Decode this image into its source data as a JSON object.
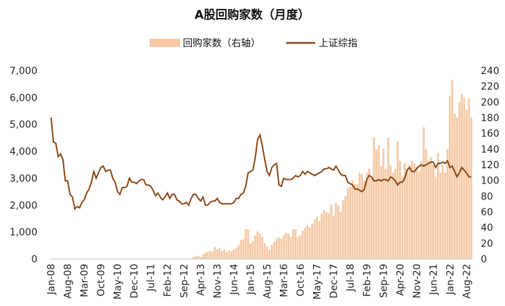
{
  "chart_data": {
    "type": "bar+line",
    "title": "A股回购家数（月度）",
    "legend": {
      "position": "top-center",
      "bar_label": "回购家数（右轴）",
      "line_label": "上证综指"
    },
    "colors": {
      "bar": "#f6c9a4",
      "line": "#8b4513"
    },
    "y_left": {
      "min": 0,
      "max": 7000,
      "ticks": [
        "0",
        "1,000",
        "2,000",
        "3,000",
        "4,000",
        "5,000",
        "6,000",
        "7,000"
      ]
    },
    "y_right": {
      "min": 0,
      "max": 240,
      "ticks": [
        "0",
        "20",
        "40",
        "60",
        "80",
        "100",
        "120",
        "140",
        "160",
        "180",
        "200",
        "220",
        "240"
      ]
    },
    "x_start": "2008-01",
    "x_tick_labels": [
      "Jan-08",
      "Aug-08",
      "Mar-09",
      "Oct-09",
      "May-10",
      "Dec-10",
      "Jul-11",
      "Feb-12",
      "Sep-12",
      "Apr-13",
      "Nov-13",
      "Jun-14",
      "Jan-15",
      "Aug-15",
      "Mar-16",
      "Oct-16",
      "May-17",
      "Dec-17",
      "Jul-18",
      "Feb-19",
      "Sep-19",
      "Apr-20",
      "Nov-20",
      "Jun-21",
      "Jan-22",
      "Aug-22"
    ],
    "line_anchors_monthly": [
      [
        0,
        5260
      ],
      [
        1,
        4350
      ],
      [
        2,
        4300
      ],
      [
        3,
        3800
      ],
      [
        4,
        3900
      ],
      [
        5,
        3700
      ],
      [
        6,
        2900
      ],
      [
        7,
        2900
      ],
      [
        8,
        2400
      ],
      [
        9,
        2300
      ],
      [
        10,
        1860
      ],
      [
        11,
        1950
      ],
      [
        12,
        1900
      ],
      [
        13,
        2100
      ],
      [
        14,
        2200
      ],
      [
        15,
        2450
      ],
      [
        16,
        2600
      ],
      [
        17,
        2850
      ],
      [
        18,
        3250
      ],
      [
        19,
        3000
      ],
      [
        20,
        3200
      ],
      [
        21,
        3400
      ],
      [
        22,
        3450
      ],
      [
        23,
        3250
      ],
      [
        24,
        3300
      ],
      [
        25,
        3300
      ],
      [
        26,
        3000
      ],
      [
        27,
        2850
      ],
      [
        28,
        2500
      ],
      [
        29,
        2400
      ],
      [
        30,
        2650
      ],
      [
        31,
        2650
      ],
      [
        32,
        2700
      ],
      [
        33,
        3000
      ],
      [
        34,
        2850
      ],
      [
        35,
        2850
      ],
      [
        36,
        2800
      ],
      [
        37,
        2900
      ],
      [
        38,
        2950
      ],
      [
        39,
        2950
      ],
      [
        40,
        2750
      ],
      [
        41,
        2750
      ],
      [
        42,
        2700
      ],
      [
        43,
        2550
      ],
      [
        44,
        2350
      ],
      [
        45,
        2450
      ],
      [
        46,
        2300
      ],
      [
        47,
        2200
      ],
      [
        48,
        2300
      ],
      [
        49,
        2450
      ],
      [
        50,
        2250
      ],
      [
        51,
        2400
      ],
      [
        52,
        2400
      ],
      [
        53,
        2200
      ],
      [
        54,
        2150
      ],
      [
        55,
        2050
      ],
      [
        56,
        2050
      ],
      [
        57,
        2100
      ],
      [
        58,
        2000
      ],
      [
        59,
        2250
      ],
      [
        60,
        2400
      ],
      [
        61,
        2400
      ],
      [
        62,
        2250
      ],
      [
        63,
        2150
      ],
      [
        64,
        2300
      ],
      [
        65,
        2000
      ],
      [
        66,
        2000
      ],
      [
        67,
        2100
      ],
      [
        68,
        2150
      ],
      [
        69,
        2150
      ],
      [
        70,
        2250
      ],
      [
        71,
        2100
      ],
      [
        72,
        2050
      ],
      [
        73,
        2050
      ],
      [
        74,
        2050
      ],
      [
        75,
        2050
      ],
      [
        76,
        2050
      ],
      [
        77,
        2100
      ],
      [
        78,
        2250
      ],
      [
        79,
        2250
      ],
      [
        80,
        2400
      ],
      [
        81,
        2450
      ],
      [
        82,
        2700
      ],
      [
        83,
        3200
      ],
      [
        84,
        3250
      ],
      [
        85,
        3300
      ],
      [
        86,
        3750
      ],
      [
        87,
        4450
      ],
      [
        88,
        4600
      ],
      [
        89,
        4200
      ],
      [
        90,
        3700
      ],
      [
        91,
        3250
      ],
      [
        92,
        3100
      ],
      [
        93,
        3400
      ],
      [
        94,
        3500
      ],
      [
        95,
        3550
      ],
      [
        96,
        2750
      ],
      [
        97,
        2700
      ],
      [
        98,
        3000
      ],
      [
        99,
        2950
      ],
      [
        100,
        2950
      ],
      [
        101,
        2950
      ],
      [
        102,
        3000
      ],
      [
        103,
        3100
      ],
      [
        104,
        3050
      ],
      [
        105,
        3100
      ],
      [
        106,
        3250
      ],
      [
        107,
        3150
      ],
      [
        108,
        3250
      ],
      [
        109,
        3200
      ],
      [
        110,
        3150
      ],
      [
        111,
        3100
      ],
      [
        112,
        3150
      ],
      [
        113,
        3200
      ],
      [
        114,
        3250
      ],
      [
        115,
        3350
      ],
      [
        116,
        3350
      ],
      [
        117,
        3400
      ],
      [
        118,
        3350
      ],
      [
        119,
        3300
      ],
      [
        120,
        3450
      ],
      [
        121,
        3300
      ],
      [
        122,
        3150
      ],
      [
        123,
        3100
      ],
      [
        124,
        3100
      ],
      [
        125,
        2850
      ],
      [
        126,
        2800
      ],
      [
        127,
        2750
      ],
      [
        128,
        2600
      ],
      [
        129,
        2600
      ],
      [
        130,
        2550
      ],
      [
        131,
        2500
      ],
      [
        132,
        2600
      ],
      [
        133,
        2950
      ],
      [
        134,
        3100
      ],
      [
        135,
        3050
      ],
      [
        136,
        2900
      ],
      [
        137,
        2900
      ],
      [
        138,
        2950
      ],
      [
        139,
        2900
      ],
      [
        140,
        2950
      ],
      [
        141,
        2950
      ],
      [
        142,
        2900
      ],
      [
        143,
        3050
      ],
      [
        144,
        3000
      ],
      [
        145,
        2900
      ],
      [
        146,
        2750
      ],
      [
        147,
        2850
      ],
      [
        148,
        2850
      ],
      [
        149,
        3000
      ],
      [
        150,
        3300
      ],
      [
        151,
        3400
      ],
      [
        152,
        3250
      ],
      [
        153,
        3250
      ],
      [
        154,
        3350
      ],
      [
        155,
        3450
      ],
      [
        156,
        3500
      ],
      [
        157,
        3450
      ],
      [
        158,
        3500
      ],
      [
        159,
        3550
      ],
      [
        160,
        3600
      ],
      [
        161,
        3600
      ],
      [
        162,
        3400
      ],
      [
        163,
        3550
      ],
      [
        164,
        3550
      ],
      [
        165,
        3600
      ],
      [
        166,
        3550
      ],
      [
        167,
        3650
      ],
      [
        168,
        3400
      ],
      [
        169,
        3450
      ],
      [
        170,
        3250
      ],
      [
        171,
        3050
      ],
      [
        172,
        3200
      ],
      [
        173,
        3400
      ],
      [
        174,
        3300
      ],
      [
        175,
        3200
      ],
      [
        176,
        3050
      ],
      [
        177,
        3050
      ]
    ],
    "bar_anchors_monthly": [
      [
        0,
        0
      ],
      [
        59,
        0
      ],
      [
        60,
        2
      ],
      [
        61,
        3
      ],
      [
        62,
        4
      ],
      [
        63,
        2
      ],
      [
        64,
        6
      ],
      [
        65,
        8
      ],
      [
        66,
        9
      ],
      [
        67,
        10
      ],
      [
        68,
        9
      ],
      [
        69,
        8
      ],
      [
        70,
        12
      ],
      [
        71,
        14
      ],
      [
        72,
        10
      ],
      [
        73,
        12
      ],
      [
        74,
        9
      ],
      [
        75,
        11
      ],
      [
        76,
        10
      ],
      [
        77,
        12
      ],
      [
        78,
        14
      ],
      [
        79,
        18
      ],
      [
        80,
        24
      ],
      [
        81,
        25
      ],
      [
        82,
        34
      ],
      [
        83,
        38
      ],
      [
        84,
        20
      ],
      [
        85,
        23
      ],
      [
        86,
        30
      ],
      [
        87,
        34
      ],
      [
        88,
        32
      ],
      [
        89,
        28
      ],
      [
        90,
        20
      ],
      [
        91,
        16
      ],
      [
        92,
        12
      ],
      [
        93,
        18
      ],
      [
        94,
        22
      ],
      [
        95,
        25
      ],
      [
        96,
        28
      ],
      [
        97,
        26
      ],
      [
        98,
        30
      ],
      [
        99,
        33
      ],
      [
        100,
        32
      ],
      [
        101,
        28
      ],
      [
        102,
        35
      ],
      [
        103,
        38
      ],
      [
        104,
        33
      ],
      [
        105,
        30
      ],
      [
        106,
        36
      ],
      [
        107,
        40
      ],
      [
        108,
        43
      ],
      [
        109,
        42
      ],
      [
        110,
        45
      ],
      [
        111,
        50
      ],
      [
        112,
        54
      ],
      [
        113,
        48
      ],
      [
        114,
        58
      ],
      [
        115,
        62
      ],
      [
        116,
        60
      ],
      [
        117,
        66
      ],
      [
        118,
        70
      ],
      [
        119,
        66
      ],
      [
        120,
        72
      ],
      [
        121,
        68
      ],
      [
        122,
        75
      ],
      [
        123,
        80
      ],
      [
        124,
        85
      ],
      [
        125,
        95
      ],
      [
        126,
        92
      ],
      [
        127,
        90
      ],
      [
        128,
        100
      ],
      [
        129,
        95
      ],
      [
        130,
        110
      ],
      [
        131,
        105
      ],
      [
        132,
        95
      ],
      [
        133,
        110
      ],
      [
        134,
        100
      ],
      [
        135,
        105
      ],
      [
        136,
        115
      ],
      [
        137,
        112
      ],
      [
        138,
        120
      ],
      [
        139,
        118
      ],
      [
        140,
        110
      ],
      [
        141,
        115
      ],
      [
        142,
        118
      ],
      [
        143,
        120
      ],
      [
        144,
        110
      ],
      [
        145,
        115
      ],
      [
        146,
        100
      ],
      [
        147,
        110
      ],
      [
        148,
        105
      ],
      [
        149,
        108
      ],
      [
        150,
        110
      ],
      [
        151,
        118
      ],
      [
        152,
        115
      ],
      [
        153,
        120
      ],
      [
        154,
        118
      ],
      [
        155,
        112
      ],
      [
        156,
        125
      ],
      [
        157,
        120
      ],
      [
        158,
        115
      ],
      [
        159,
        110
      ],
      [
        160,
        118
      ],
      [
        161,
        115
      ],
      [
        162,
        100
      ],
      [
        163,
        110
      ],
      [
        164,
        112
      ],
      [
        165,
        115
      ],
      [
        166,
        120
      ],
      [
        167,
        140
      ],
      [
        168,
        200
      ],
      [
        169,
        210
      ],
      [
        170,
        190
      ],
      [
        171,
        180
      ],
      [
        172,
        200
      ],
      [
        173,
        185
      ],
      [
        174,
        205
      ],
      [
        175,
        190
      ],
      [
        176,
        205
      ],
      [
        177,
        180
      ]
    ],
    "bar_peaks_monthly": [
      [
        69,
        15
      ],
      [
        82,
        38
      ],
      [
        87,
        35
      ],
      [
        95,
        26
      ],
      [
        102,
        38
      ],
      [
        104,
        28
      ],
      [
        109,
        40
      ],
      [
        112,
        54
      ],
      [
        116,
        60
      ],
      [
        117,
        58
      ],
      [
        119,
        55
      ],
      [
        122,
        60
      ],
      [
        123,
        75
      ],
      [
        124,
        80
      ],
      [
        125,
        90
      ],
      [
        127,
        100
      ],
      [
        128,
        95
      ],
      [
        130,
        110
      ],
      [
        131,
        108
      ],
      [
        132,
        100
      ],
      [
        133,
        110
      ],
      [
        134,
        115
      ],
      [
        136,
        155
      ],
      [
        137,
        140
      ],
      [
        138,
        145
      ],
      [
        140,
        140
      ],
      [
        142,
        155
      ],
      [
        143,
        120
      ],
      [
        146,
        150
      ],
      [
        147,
        125
      ],
      [
        149,
        122
      ],
      [
        150,
        115
      ],
      [
        151,
        120
      ],
      [
        152,
        125
      ],
      [
        153,
        122
      ],
      [
        156,
        125
      ],
      [
        157,
        168
      ],
      [
        158,
        140
      ],
      [
        159,
        125
      ],
      [
        160,
        130
      ],
      [
        161,
        120
      ],
      [
        162,
        105
      ],
      [
        163,
        135
      ],
      [
        164,
        110
      ],
      [
        165,
        120
      ],
      [
        166,
        110
      ],
      [
        168,
        208
      ],
      [
        169,
        228
      ],
      [
        170,
        185
      ],
      [
        171,
        180
      ],
      [
        172,
        200
      ],
      [
        173,
        210
      ],
      [
        174,
        206
      ],
      [
        175,
        190
      ]
    ]
  }
}
